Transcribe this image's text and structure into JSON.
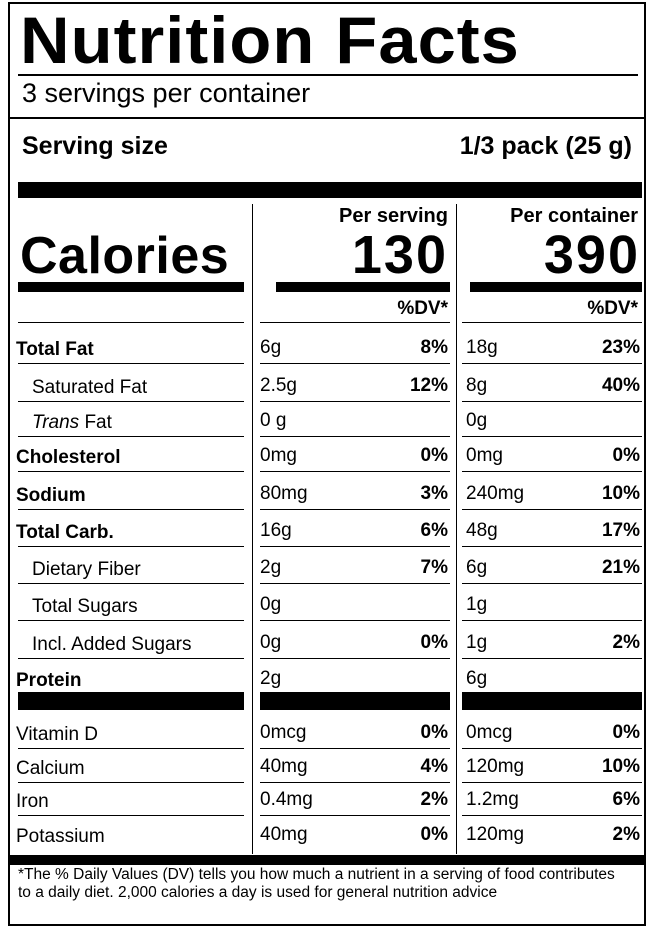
{
  "title": "Nutrition Facts",
  "servings_per_container": "3 servings per container",
  "serving_size": {
    "label": "Serving size",
    "value": "1/3 pack (25 g)"
  },
  "columns": {
    "per_serving": "Per serving",
    "per_container": "Per container",
    "dv_label": "%DV*"
  },
  "calories": {
    "label": "Calories",
    "per_serving": "130",
    "per_container": "390"
  },
  "nutrients": [
    {
      "name": "Total Fat",
      "bold": true,
      "indent": false,
      "serving_amount": "6g",
      "serving_dv": "8%",
      "container_amount": "18g",
      "container_dv": "23%"
    },
    {
      "name": "Saturated Fat",
      "bold": false,
      "indent": true,
      "serving_amount": "2.5g",
      "serving_dv": "12%",
      "container_amount": "8g",
      "container_dv": "40%"
    },
    {
      "name_italic": "Trans",
      "name": " Fat",
      "bold": false,
      "indent": true,
      "serving_amount": "0 g",
      "serving_dv": "",
      "container_amount": "0g",
      "container_dv": ""
    },
    {
      "name": "Cholesterol",
      "bold": true,
      "indent": false,
      "serving_amount": "0mg",
      "serving_dv": "0%",
      "container_amount": "0mg",
      "container_dv": "0%"
    },
    {
      "name": "Sodium",
      "bold": true,
      "indent": false,
      "serving_amount": "80mg",
      "serving_dv": "3%",
      "container_amount": "240mg",
      "container_dv": "10%"
    },
    {
      "name": "Total Carb.",
      "bold": true,
      "indent": false,
      "serving_amount": "16g",
      "serving_dv": "6%",
      "container_amount": "48g",
      "container_dv": "17%"
    },
    {
      "name": "Dietary Fiber",
      "bold": false,
      "indent": true,
      "serving_amount": "2g",
      "serving_dv": "7%",
      "container_amount": "6g",
      "container_dv": "21%"
    },
    {
      "name": "Total Sugars",
      "bold": false,
      "indent": true,
      "serving_amount": "0g",
      "serving_dv": "",
      "container_amount": "1g",
      "container_dv": ""
    },
    {
      "name": "Incl. Added Sugars",
      "bold": false,
      "indent": true,
      "serving_amount": "0g",
      "serving_dv": "0%",
      "container_amount": "1g",
      "container_dv": "2%"
    },
    {
      "name": "Protein",
      "bold": true,
      "indent": false,
      "serving_amount": "2g",
      "serving_dv": "",
      "container_amount": "6g",
      "container_dv": ""
    }
  ],
  "vitamins": [
    {
      "name": "Vitamin D",
      "serving_amount": "0mcg",
      "serving_dv": "0%",
      "container_amount": "0mcg",
      "container_dv": "0%"
    },
    {
      "name": "Calcium",
      "serving_amount": "40mg",
      "serving_dv": "4%",
      "container_amount": "120mg",
      "container_dv": "10%"
    },
    {
      "name": "Iron",
      "serving_amount": "0.4mg",
      "serving_dv": "2%",
      "container_amount": "1.2mg",
      "container_dv": "6%"
    },
    {
      "name": "Potassium",
      "serving_amount": "40mg",
      "serving_dv": "0%",
      "container_amount": "120mg",
      "container_dv": "2%"
    }
  ],
  "footnote": "*The % Daily Values (DV) tells you how much a nutrient in a serving of food contributes to a daily diet. 2,000 calories a day is used for general nutrition advice"
}
